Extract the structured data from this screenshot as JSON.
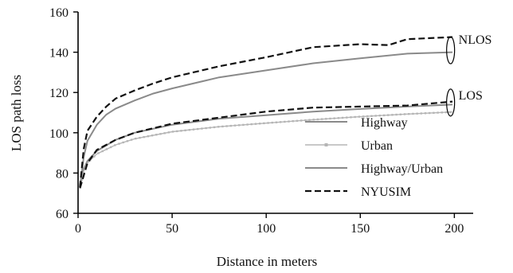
{
  "chart_data": {
    "type": "line",
    "xlabel": "Distance in meters",
    "ylabel": "LOS path loss",
    "xlim": [
      0,
      210
    ],
    "ylim": [
      60,
      160
    ],
    "xticks": [
      0,
      50,
      100,
      150,
      200
    ],
    "yticks": [
      60,
      80,
      100,
      120,
      140,
      160
    ],
    "legend_position": "center-right",
    "grid": false,
    "annotations": [
      {
        "text": "NLOS",
        "x": 198,
        "y": 141
      },
      {
        "text": "LOS",
        "x": 198,
        "y": 115
      }
    ],
    "series": [
      {
        "name": "Highway",
        "color": "#8a8a8a",
        "style": "solid",
        "points": [
          [
            1,
            72.5
          ],
          [
            3,
            82
          ],
          [
            5,
            86
          ],
          [
            10,
            91
          ],
          [
            20,
            96.5
          ],
          [
            30,
            100
          ],
          [
            50,
            104
          ],
          [
            75,
            107
          ],
          [
            100,
            108.7
          ],
          [
            125,
            110.5
          ],
          [
            150,
            111.8
          ],
          [
            175,
            113
          ],
          [
            199,
            114
          ]
        ]
      },
      {
        "name": "Urban",
        "color": "#b5b5b5",
        "style": "solid-marker",
        "points": [
          [
            1,
            72.5
          ],
          [
            3,
            81
          ],
          [
            5,
            85
          ],
          [
            10,
            89.5
          ],
          [
            20,
            94
          ],
          [
            30,
            97
          ],
          [
            50,
            100.5
          ],
          [
            75,
            103
          ],
          [
            100,
            104.8
          ],
          [
            125,
            106.5
          ],
          [
            150,
            108
          ],
          [
            175,
            109.3
          ],
          [
            199,
            110.3
          ]
        ]
      },
      {
        "name": "Highway/Urban",
        "color": "#8a8a8a",
        "style": "solid",
        "points": [
          [
            1,
            73
          ],
          [
            3,
            88
          ],
          [
            5,
            96
          ],
          [
            10,
            104
          ],
          [
            15,
            109
          ],
          [
            20,
            112
          ],
          [
            30,
            116
          ],
          [
            40,
            119.5
          ],
          [
            50,
            122
          ],
          [
            75,
            127.5
          ],
          [
            100,
            131
          ],
          [
            125,
            134.5
          ],
          [
            150,
            137
          ],
          [
            175,
            139.3
          ],
          [
            199,
            140
          ]
        ]
      },
      {
        "name": "NYUSIM",
        "color": "#111111",
        "style": "dashed",
        "points": [
          [
            1,
            73
          ],
          [
            3,
            92
          ],
          [
            5,
            101
          ],
          [
            10,
            108
          ],
          [
            15,
            113
          ],
          [
            20,
            117
          ],
          [
            30,
            121
          ],
          [
            40,
            124.5
          ],
          [
            50,
            127.5
          ],
          [
            75,
            133
          ],
          [
            100,
            137.5
          ],
          [
            125,
            142.5
          ],
          [
            150,
            144
          ],
          [
            165,
            143.5
          ],
          [
            175,
            146.5
          ],
          [
            199,
            147.5
          ],
          [
            1,
            72.5
          ],
          [
            5,
            85
          ],
          [
            10,
            91.5
          ],
          [
            20,
            96.5
          ],
          [
            30,
            100
          ],
          [
            50,
            104.5
          ],
          [
            75,
            107.5
          ],
          [
            100,
            110.5
          ],
          [
            125,
            112.5
          ],
          [
            150,
            113
          ],
          [
            175,
            113.5
          ],
          [
            199,
            115.5
          ]
        ]
      }
    ]
  }
}
